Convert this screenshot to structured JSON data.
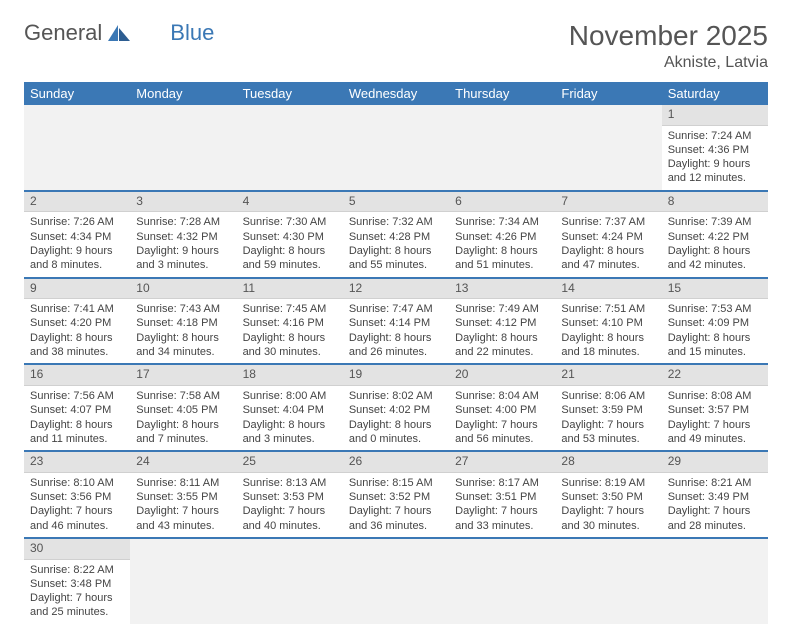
{
  "brand": {
    "word1": "General",
    "word2": "Blue"
  },
  "title": "November 2025",
  "location": "Akniste, Latvia",
  "colors": {
    "accent": "#3b78b5",
    "header_bg": "#e3e3e3",
    "empty_bg": "#f2f2f2"
  },
  "weekdays": [
    "Sunday",
    "Monday",
    "Tuesday",
    "Wednesday",
    "Thursday",
    "Friday",
    "Saturday"
  ],
  "layout": {
    "first_weekday_index": 6,
    "days_in_month": 30
  },
  "days": {
    "1": {
      "sunrise": "7:24 AM",
      "sunset": "4:36 PM",
      "daylight": "9 hours and 12 minutes."
    },
    "2": {
      "sunrise": "7:26 AM",
      "sunset": "4:34 PM",
      "daylight": "9 hours and 8 minutes."
    },
    "3": {
      "sunrise": "7:28 AM",
      "sunset": "4:32 PM",
      "daylight": "9 hours and 3 minutes."
    },
    "4": {
      "sunrise": "7:30 AM",
      "sunset": "4:30 PM",
      "daylight": "8 hours and 59 minutes."
    },
    "5": {
      "sunrise": "7:32 AM",
      "sunset": "4:28 PM",
      "daylight": "8 hours and 55 minutes."
    },
    "6": {
      "sunrise": "7:34 AM",
      "sunset": "4:26 PM",
      "daylight": "8 hours and 51 minutes."
    },
    "7": {
      "sunrise": "7:37 AM",
      "sunset": "4:24 PM",
      "daylight": "8 hours and 47 minutes."
    },
    "8": {
      "sunrise": "7:39 AM",
      "sunset": "4:22 PM",
      "daylight": "8 hours and 42 minutes."
    },
    "9": {
      "sunrise": "7:41 AM",
      "sunset": "4:20 PM",
      "daylight": "8 hours and 38 minutes."
    },
    "10": {
      "sunrise": "7:43 AM",
      "sunset": "4:18 PM",
      "daylight": "8 hours and 34 minutes."
    },
    "11": {
      "sunrise": "7:45 AM",
      "sunset": "4:16 PM",
      "daylight": "8 hours and 30 minutes."
    },
    "12": {
      "sunrise": "7:47 AM",
      "sunset": "4:14 PM",
      "daylight": "8 hours and 26 minutes."
    },
    "13": {
      "sunrise": "7:49 AM",
      "sunset": "4:12 PM",
      "daylight": "8 hours and 22 minutes."
    },
    "14": {
      "sunrise": "7:51 AM",
      "sunset": "4:10 PM",
      "daylight": "8 hours and 18 minutes."
    },
    "15": {
      "sunrise": "7:53 AM",
      "sunset": "4:09 PM",
      "daylight": "8 hours and 15 minutes."
    },
    "16": {
      "sunrise": "7:56 AM",
      "sunset": "4:07 PM",
      "daylight": "8 hours and 11 minutes."
    },
    "17": {
      "sunrise": "7:58 AM",
      "sunset": "4:05 PM",
      "daylight": "8 hours and 7 minutes."
    },
    "18": {
      "sunrise": "8:00 AM",
      "sunset": "4:04 PM",
      "daylight": "8 hours and 3 minutes."
    },
    "19": {
      "sunrise": "8:02 AM",
      "sunset": "4:02 PM",
      "daylight": "8 hours and 0 minutes."
    },
    "20": {
      "sunrise": "8:04 AM",
      "sunset": "4:00 PM",
      "daylight": "7 hours and 56 minutes."
    },
    "21": {
      "sunrise": "8:06 AM",
      "sunset": "3:59 PM",
      "daylight": "7 hours and 53 minutes."
    },
    "22": {
      "sunrise": "8:08 AM",
      "sunset": "3:57 PM",
      "daylight": "7 hours and 49 minutes."
    },
    "23": {
      "sunrise": "8:10 AM",
      "sunset": "3:56 PM",
      "daylight": "7 hours and 46 minutes."
    },
    "24": {
      "sunrise": "8:11 AM",
      "sunset": "3:55 PM",
      "daylight": "7 hours and 43 minutes."
    },
    "25": {
      "sunrise": "8:13 AM",
      "sunset": "3:53 PM",
      "daylight": "7 hours and 40 minutes."
    },
    "26": {
      "sunrise": "8:15 AM",
      "sunset": "3:52 PM",
      "daylight": "7 hours and 36 minutes."
    },
    "27": {
      "sunrise": "8:17 AM",
      "sunset": "3:51 PM",
      "daylight": "7 hours and 33 minutes."
    },
    "28": {
      "sunrise": "8:19 AM",
      "sunset": "3:50 PM",
      "daylight": "7 hours and 30 minutes."
    },
    "29": {
      "sunrise": "8:21 AM",
      "sunset": "3:49 PM",
      "daylight": "7 hours and 28 minutes."
    },
    "30": {
      "sunrise": "8:22 AM",
      "sunset": "3:48 PM",
      "daylight": "7 hours and 25 minutes."
    }
  },
  "labels": {
    "sunrise": "Sunrise: ",
    "sunset": "Sunset: ",
    "daylight": "Daylight: "
  }
}
